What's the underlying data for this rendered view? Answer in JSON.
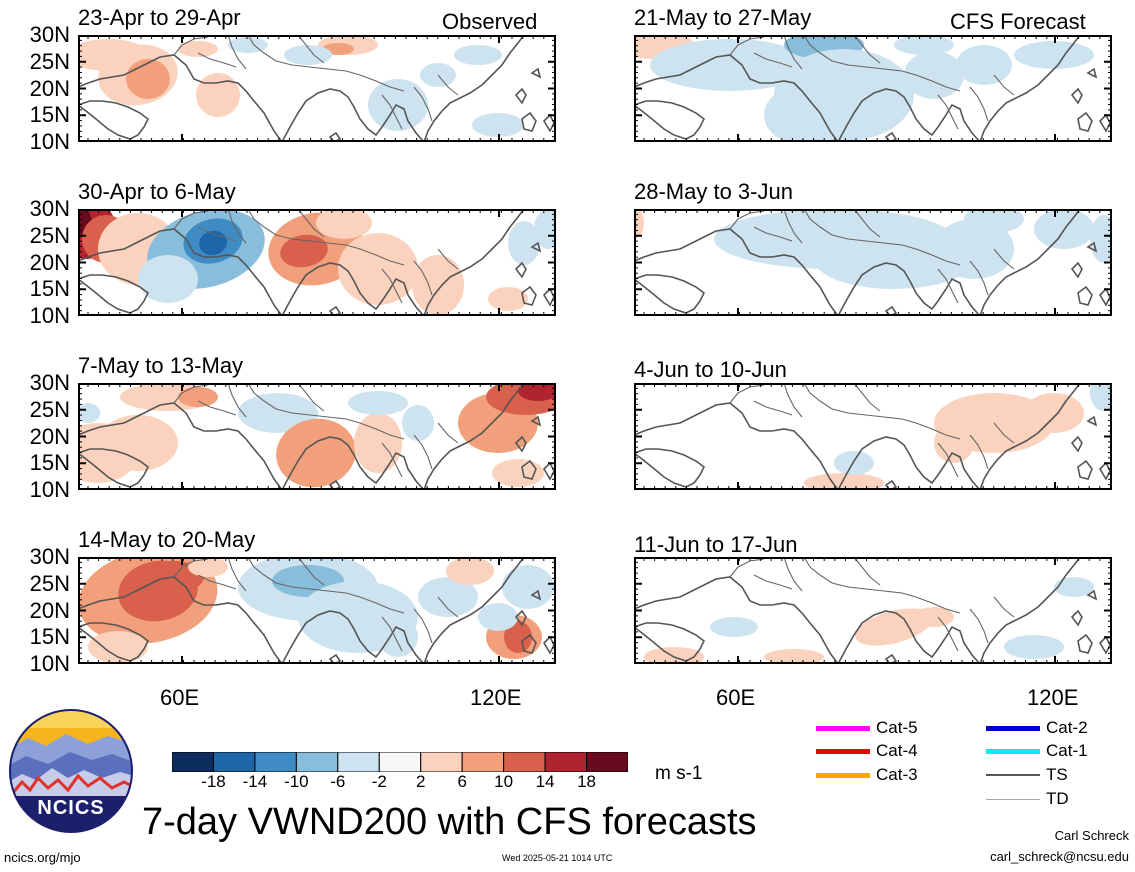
{
  "header": {
    "observed_label": "Observed",
    "forecast_label": "CFS Forecast"
  },
  "lat_labels": [
    "30N",
    "25N",
    "20N",
    "15N",
    "10N"
  ],
  "lon_labels": [
    "60E",
    "120E"
  ],
  "panels": {
    "observed": [
      {
        "title": "23-Apr to 29-Apr"
      },
      {
        "title": "30-Apr to 6-May"
      },
      {
        "title": "7-May to 13-May"
      },
      {
        "title": "14-May to 20-May"
      }
    ],
    "forecast": [
      {
        "title": "21-May to 27-May"
      },
      {
        "title": "28-May to 3-Jun"
      },
      {
        "title": "4-Jun to 10-Jun"
      },
      {
        "title": "11-Jun to 17-Jun"
      }
    ]
  },
  "colorbar": {
    "ticks": [
      "-18",
      "-14",
      "-10",
      "-6",
      "-2",
      "2",
      "6",
      "10",
      "14",
      "18"
    ],
    "colors": [
      "#0b2d5e",
      "#1f66a8",
      "#3f8cc4",
      "#88bddc",
      "#cde3f0",
      "#f7f7f7",
      "#fbd2bd",
      "#f2a07c",
      "#d8604c",
      "#b02430",
      "#680b1f"
    ],
    "units": "m s-1"
  },
  "legend": [
    {
      "label": "Cat-5",
      "color": "#ff00ff"
    },
    {
      "label": "Cat-4",
      "color": "#ee0000"
    },
    {
      "label": "Cat-3",
      "color": "#ffa500"
    },
    {
      "label": "Cat-2",
      "color": "#0000cc"
    },
    {
      "label": "Cat-1",
      "color": "#00eeee"
    },
    {
      "label": "TS",
      "color": "#555555"
    },
    {
      "label": "TD",
      "color": "#aaaaaa"
    }
  ],
  "logo": {
    "text": "NCICS"
  },
  "title": "7-day VWND200 with CFS forecasts",
  "footer": {
    "url": "ncics.org/mjo",
    "date": "Wed 2025-05-21 1014 UTC",
    "author": "Carl Schreck",
    "email": "carl_schreck@ncsu.edu"
  },
  "map": {
    "region": "South Asia, 10N-30N, ~40E-130E",
    "variable": "200-hPa meridional wind anomaly"
  }
}
